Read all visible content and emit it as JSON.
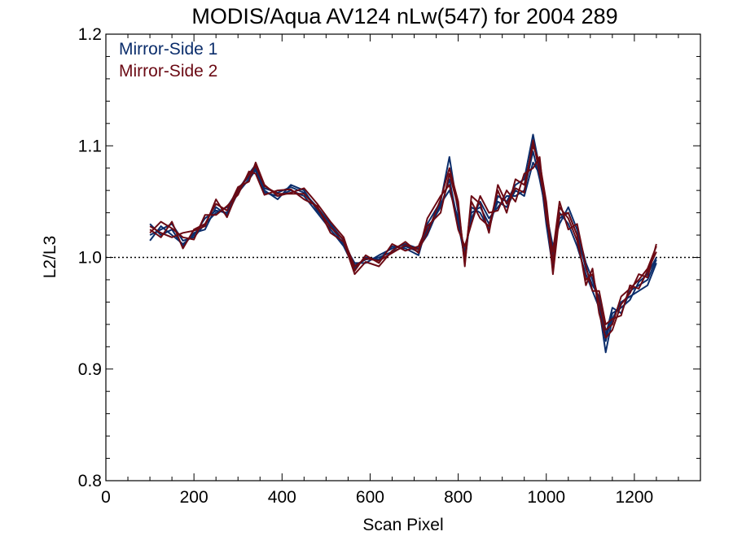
{
  "chart_data": {
    "type": "line",
    "title": "MODIS/Aqua AV124 nLw(547) for 2004 289",
    "xlabel": "Scan Pixel",
    "ylabel": "L2/L3",
    "xlim": [
      0,
      1350
    ],
    "ylim": [
      0.8,
      1.2
    ],
    "x_ticks": [
      0,
      200,
      400,
      600,
      800,
      1000,
      1200
    ],
    "y_ticks": [
      0.8,
      0.9,
      1.0,
      1.1,
      1.2
    ],
    "x_tick_labels": [
      "0",
      "200",
      "400",
      "600",
      "800",
      "1000",
      "1200"
    ],
    "y_tick_labels": [
      "0.8",
      "0.9",
      "1.0",
      "1.1",
      "1.2"
    ],
    "reference_line": {
      "y": 1.0,
      "style": "dotted"
    },
    "grid": false,
    "legend_position": "top-left",
    "x": [
      100,
      125,
      150,
      175,
      200,
      225,
      250,
      275,
      300,
      325,
      340,
      360,
      390,
      420,
      450,
      480,
      510,
      540,
      565,
      590,
      620,
      650,
      680,
      710,
      730,
      760,
      780,
      800,
      815,
      830,
      850,
      870,
      890,
      910,
      930,
      950,
      970,
      985,
      1000,
      1015,
      1030,
      1050,
      1070,
      1090,
      1105,
      1120,
      1135,
      1150,
      1170,
      1190,
      1210,
      1230,
      1250
    ],
    "series": [
      {
        "name": "Mirror-Side 1",
        "color": "#0b2d6b",
        "curves": [
          [
            1.02,
            1.025,
            1.03,
            1.015,
            1.018,
            1.03,
            1.04,
            1.045,
            1.06,
            1.075,
            1.083,
            1.062,
            1.058,
            1.063,
            1.058,
            1.045,
            1.03,
            1.015,
            0.993,
            0.998,
            1.0,
            1.005,
            1.01,
            1.005,
            1.025,
            1.045,
            1.07,
            1.03,
            1.0,
            1.04,
            1.045,
            1.03,
            1.05,
            1.045,
            1.06,
            1.055,
            1.085,
            1.075,
            1.045,
            1.0,
            1.035,
            1.04,
            1.02,
            0.99,
            0.975,
            0.965,
            0.93,
            0.955,
            0.95,
            0.97,
            0.975,
            0.98,
            0.998
          ],
          [
            1.03,
            1.02,
            1.025,
            1.01,
            1.022,
            1.025,
            1.045,
            1.038,
            1.058,
            1.07,
            1.078,
            1.058,
            1.055,
            1.06,
            1.055,
            1.04,
            1.025,
            1.01,
            0.99,
            1.0,
            0.998,
            1.01,
            1.008,
            1.002,
            1.03,
            1.05,
            1.09,
            1.04,
            0.995,
            1.045,
            1.04,
            1.025,
            1.055,
            1.05,
            1.065,
            1.07,
            1.11,
            1.08,
            1.03,
            0.99,
            1.04,
            1.03,
            1.01,
            0.985,
            0.97,
            0.955,
            0.915,
            0.945,
            0.96,
            0.965,
            0.97,
            0.975,
            0.995
          ],
          [
            1.015,
            1.028,
            1.02,
            1.012,
            1.02,
            1.035,
            1.042,
            1.04,
            1.062,
            1.072,
            1.08,
            1.06,
            1.052,
            1.065,
            1.06,
            1.042,
            1.028,
            1.012,
            0.995,
            0.995,
            1.002,
            1.008,
            1.012,
            1.008,
            1.02,
            1.048,
            1.06,
            1.035,
            1.005,
            1.035,
            1.05,
            1.035,
            1.045,
            1.055,
            1.055,
            1.06,
            1.095,
            1.07,
            1.04,
            1.01,
            1.03,
            1.045,
            1.025,
            0.995,
            0.98,
            0.96,
            0.925,
            0.95,
            0.955,
            0.962,
            0.978,
            0.985,
            1.0
          ]
        ]
      },
      {
        "name": "Mirror-Side 2",
        "color": "#6b0a14",
        "curves": [
          [
            1.025,
            1.018,
            1.032,
            1.008,
            1.025,
            1.03,
            1.048,
            1.042,
            1.063,
            1.068,
            1.085,
            1.065,
            1.055,
            1.058,
            1.062,
            1.048,
            1.032,
            1.018,
            0.988,
            1.002,
            0.995,
            1.012,
            1.006,
            1.01,
            1.028,
            1.04,
            1.075,
            1.045,
            0.998,
            1.05,
            1.035,
            1.028,
            1.06,
            1.04,
            1.07,
            1.065,
            1.1,
            1.085,
            1.05,
            0.995,
            1.045,
            1.035,
            1.015,
            0.98,
            0.985,
            0.96,
            0.935,
            0.94,
            0.965,
            0.972,
            0.98,
            0.99,
            1.01
          ],
          [
            1.022,
            1.032,
            1.026,
            1.018,
            1.016,
            1.038,
            1.038,
            1.046,
            1.056,
            1.077,
            1.075,
            1.056,
            1.06,
            1.061,
            1.052,
            1.046,
            1.022,
            1.014,
            0.985,
            0.996,
            0.992,
            1.006,
            1.014,
            1.004,
            1.035,
            1.055,
            1.065,
            1.025,
            1.01,
            1.03,
            1.055,
            1.04,
            1.042,
            1.06,
            1.05,
            1.075,
            1.08,
            1.09,
            1.035,
            1.005,
            1.05,
            1.025,
            1.03,
            0.992,
            0.97,
            0.97,
            0.94,
            0.945,
            0.948,
            0.975,
            0.972,
            0.988,
            1.005
          ],
          [
            1.028,
            1.022,
            1.018,
            1.022,
            1.024,
            1.028,
            1.052,
            1.036,
            1.06,
            1.074,
            1.082,
            1.064,
            1.057,
            1.057,
            1.057,
            1.044,
            1.027,
            1.016,
            0.992,
            0.999,
            0.997,
            1.004,
            1.011,
            1.007,
            1.022,
            1.052,
            1.08,
            1.05,
            0.992,
            1.055,
            1.048,
            1.022,
            1.065,
            1.048,
            1.062,
            1.058,
            1.105,
            1.075,
            1.045,
            0.985,
            1.038,
            1.04,
            1.02,
            0.975,
            0.99,
            0.95,
            0.928,
            0.935,
            0.958,
            0.968,
            0.985,
            0.982,
            1.012
          ]
        ]
      }
    ]
  }
}
